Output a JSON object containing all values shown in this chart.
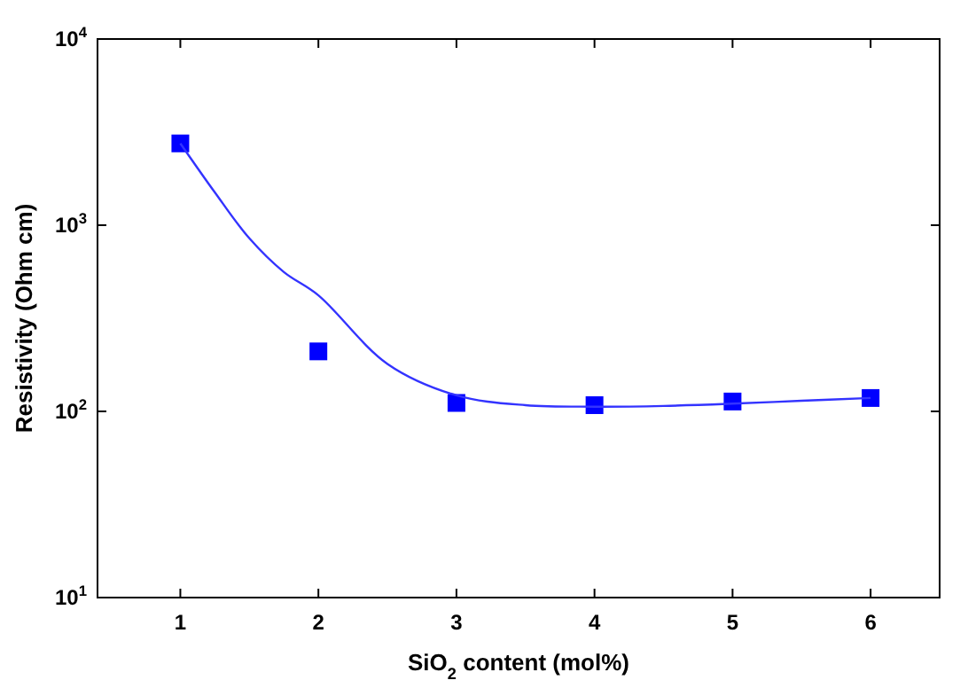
{
  "chart_data": {
    "type": "scatter",
    "xlabel": "SiO$_{2}$ content (mol%)",
    "ylabel": "Resistivity (Ohm cm)",
    "x": [
      1,
      2,
      3,
      4,
      5,
      6
    ],
    "log": "y",
    "xlim": [
      0.4,
      6.5
    ],
    "xticks": [
      1,
      2,
      3,
      4,
      5,
      6
    ],
    "ylim": [
      10,
      10000
    ],
    "yticks": [
      {
        "value": 10,
        "label": "10$^{1}$"
      },
      {
        "value": 100,
        "label": "10$^{2}$"
      },
      {
        "value": 1000,
        "label": "10$^{3}$"
      },
      {
        "value": 10000,
        "label": "10$^{4}$"
      }
    ],
    "marker": "square",
    "series": [
      {
        "type": "scatter",
        "color": "#0000ff",
        "values": [
          2750,
          210,
          111,
          108,
          113,
          118
        ]
      },
      {
        "type": "line",
        "color": "#3333ff",
        "marker": "none",
        "line_style": "solid",
        "x": [
          1,
          1.25,
          1.5,
          1.75,
          2,
          2.5,
          3,
          3.5,
          4,
          4.5,
          5,
          5.5,
          6
        ],
        "values": [
          2750,
          1500,
          850,
          560,
          420,
          180,
          122,
          108,
          106,
          107,
          110,
          114,
          118
        ]
      }
    ]
  }
}
